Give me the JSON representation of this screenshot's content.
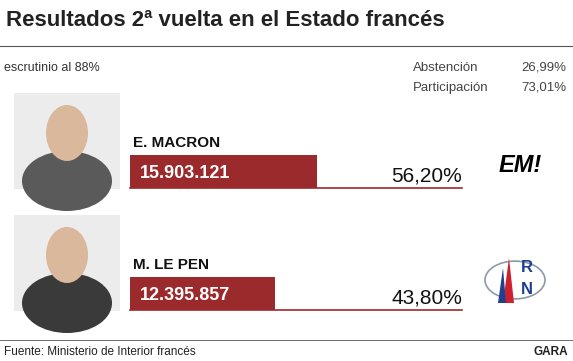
{
  "header": {
    "title": "Resultados 2ª vuelta en el Estado francés",
    "subtitle": "escrutinio al 88%",
    "turnout": [
      {
        "label": "Abstención",
        "value": "26,99%"
      },
      {
        "label": "Participación",
        "value": "73,01%"
      }
    ]
  },
  "chart_data": {
    "type": "bar",
    "orientation": "horizontal",
    "categories": [
      "E. MACRON",
      "M. LE PEN"
    ],
    "values": [
      56.2,
      43.8
    ],
    "value_labels": [
      "56,20%",
      "43,80%"
    ],
    "votes": [
      15903121,
      12395857
    ],
    "vote_labels": [
      "15.903.121",
      "12.395.857"
    ],
    "logos": [
      "EM!",
      "RN"
    ],
    "color": "#9b2a2c",
    "xlim": [
      0,
      100
    ],
    "xticks": [],
    "tick_labels": false,
    "data_labels": true
  },
  "footer": {
    "source": "Fuente: Ministerio de Interior francés",
    "publisher": "GARA"
  }
}
